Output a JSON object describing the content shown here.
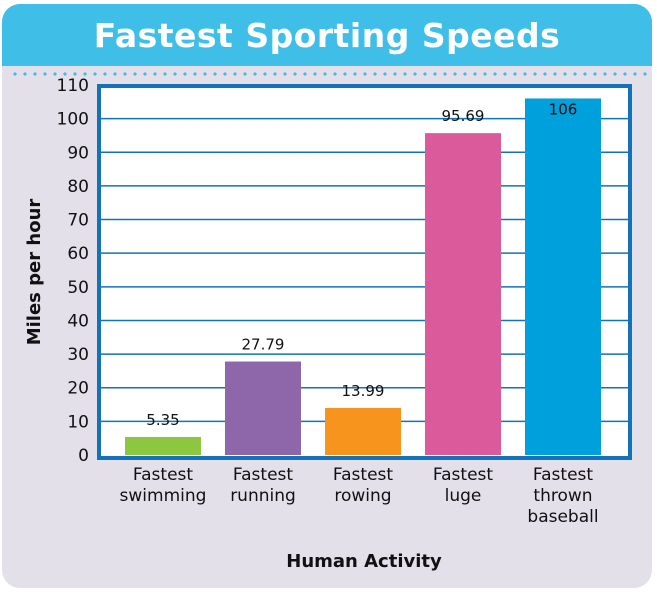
{
  "chart_data": {
    "type": "bar",
    "title": "Fastest Sporting Speeds",
    "xlabel": "Human Activity",
    "ylabel": "Miles per hour",
    "ylim": [
      0,
      110
    ],
    "yticks": [
      0,
      10,
      20,
      30,
      40,
      50,
      60,
      70,
      80,
      90,
      100,
      110
    ],
    "grid": true,
    "categories": [
      [
        "Fastest",
        "swimming"
      ],
      [
        "Fastest",
        "running"
      ],
      [
        "Fastest",
        "rowing"
      ],
      [
        "Fastest",
        "luge"
      ],
      [
        "Fastest",
        "thrown",
        "baseball"
      ]
    ],
    "values": [
      5.35,
      27.79,
      13.99,
      95.69,
      106
    ],
    "data_labels": [
      "5.35",
      "27.79",
      "13.99",
      "95.69",
      "106"
    ],
    "colors": [
      "#8dc63f",
      "#8e67ab",
      "#f7941d",
      "#db5a9b",
      "#00a0dc"
    ],
    "frame_color": "#1273b8"
  }
}
